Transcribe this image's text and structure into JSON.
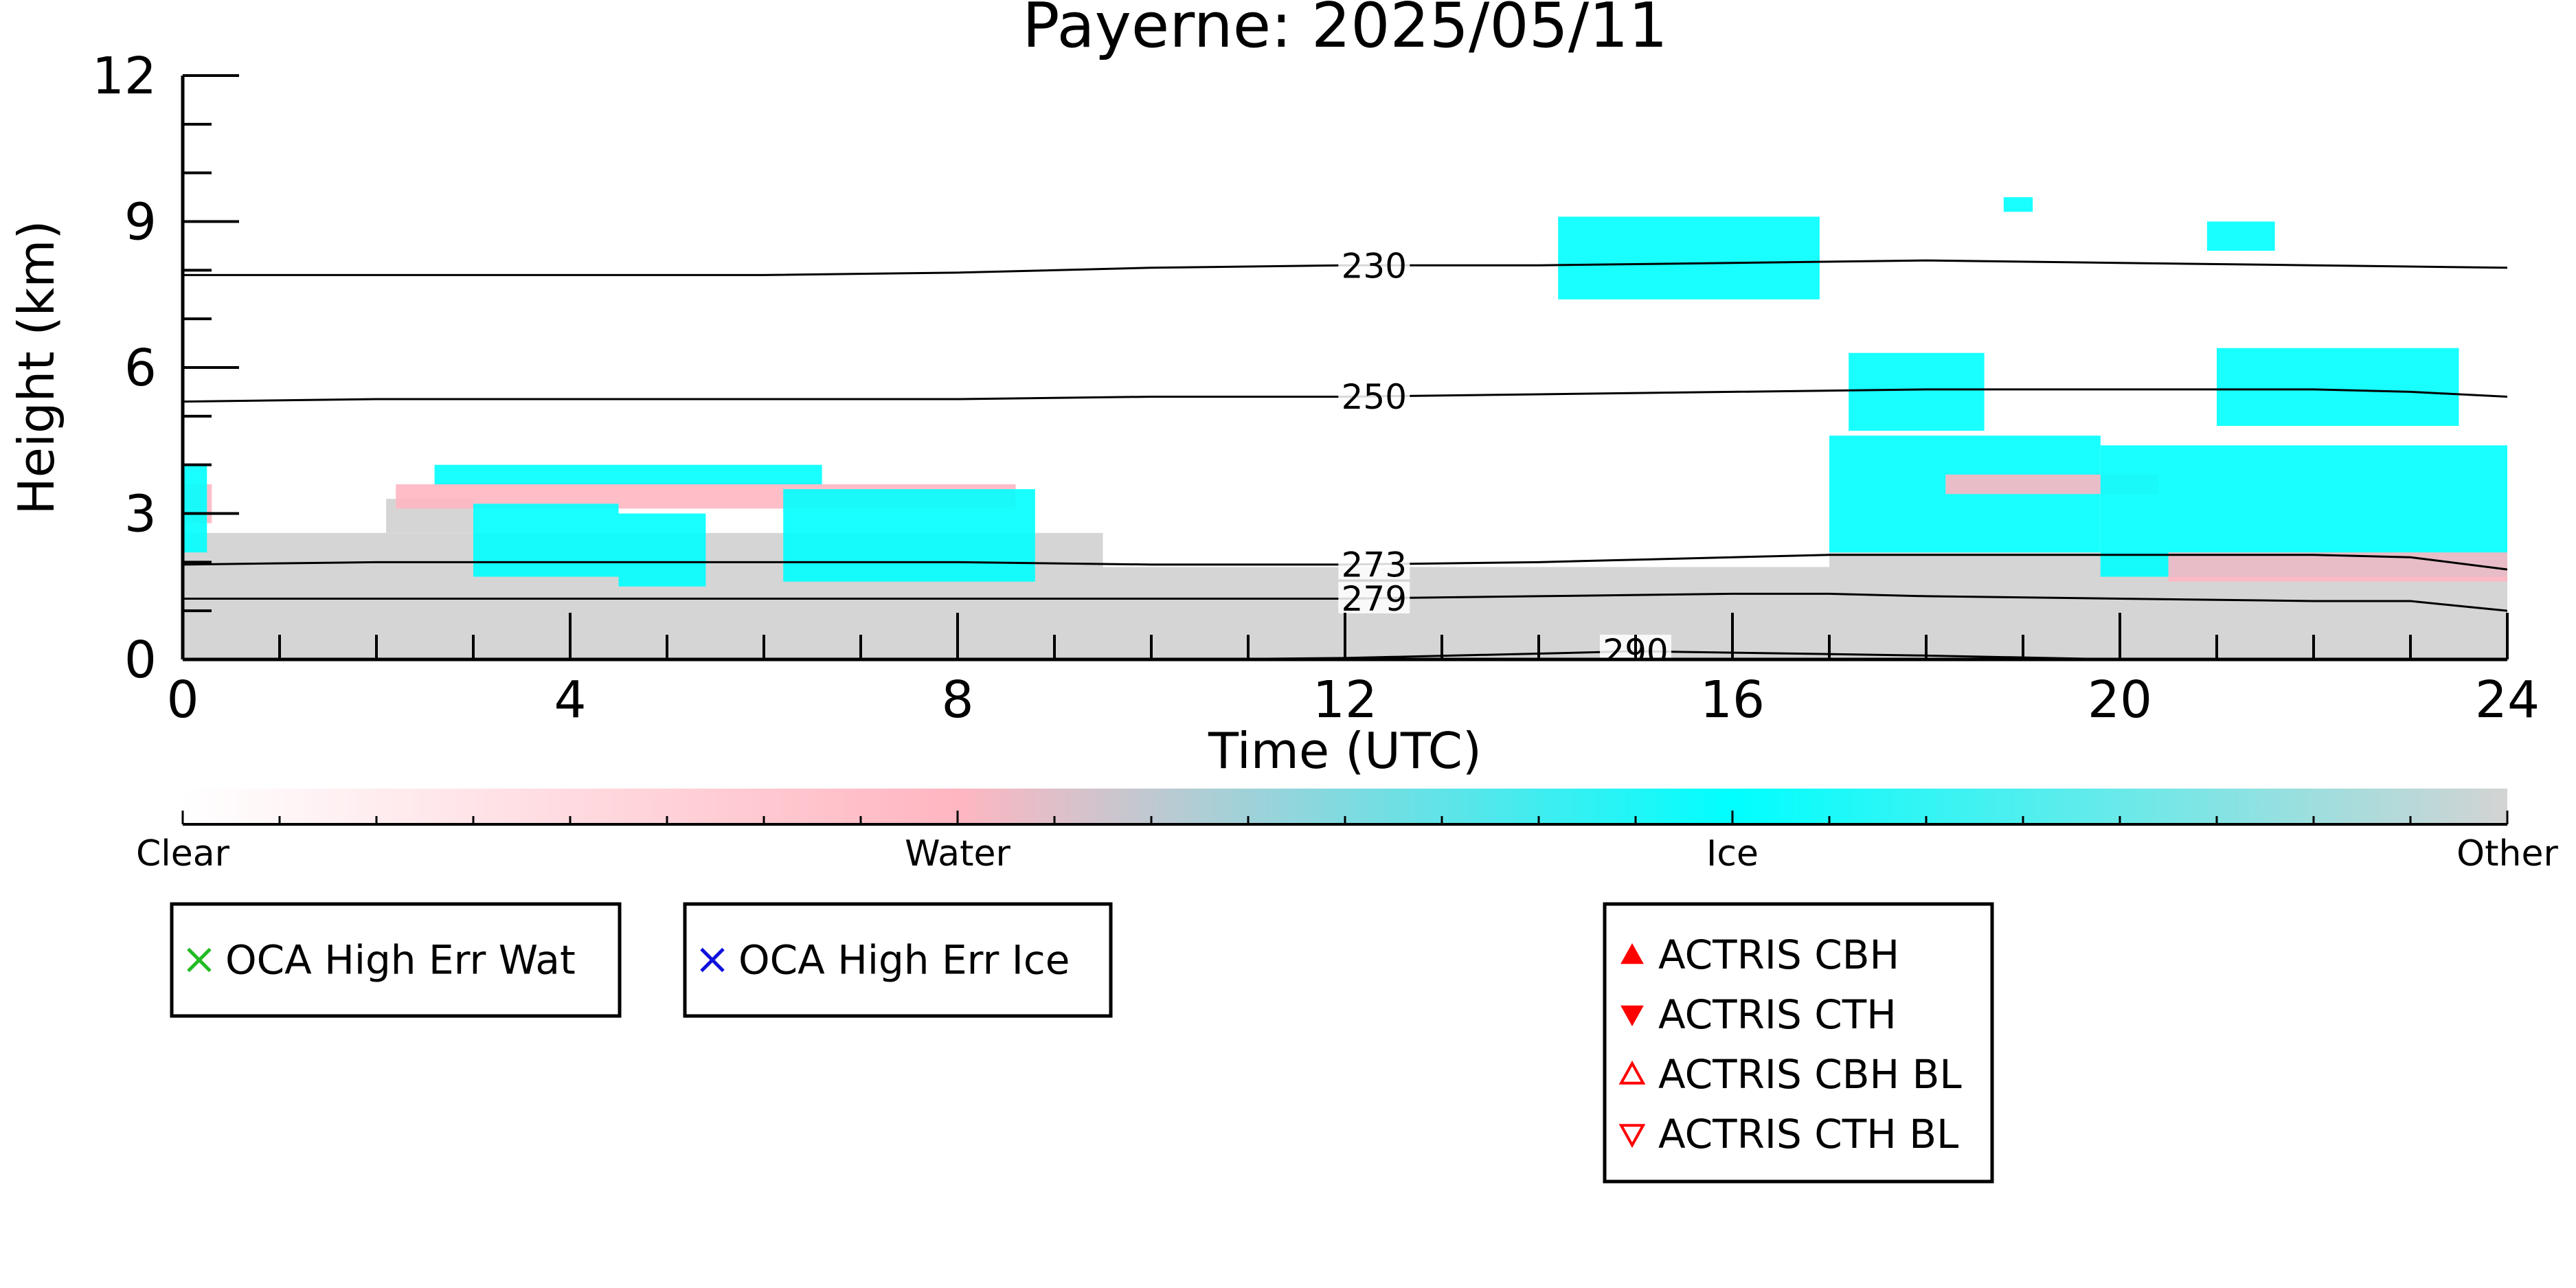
{
  "chart_data": {
    "type": "heatmap",
    "title": "Payerne: 2025/05/11",
    "xlabel": "Time (UTC)",
    "ylabel": "Height (km)",
    "xlim": [
      0,
      24
    ],
    "ylim": [
      0,
      12
    ],
    "x_ticks": [
      "0",
      "4",
      "8",
      "12",
      "16",
      "20",
      "24"
    ],
    "y_ticks": [
      "0",
      "3",
      "6",
      "9",
      "12"
    ],
    "colorbar": {
      "labels": [
        "Clear",
        "Water",
        "Ice",
        "Other"
      ],
      "stops": [
        {
          "value": 0.0,
          "color": "#ffffff"
        },
        {
          "value": 0.333,
          "color": "#ffb6c1"
        },
        {
          "value": 0.667,
          "color": "#00ffff"
        },
        {
          "value": 1.0,
          "color": "#d3d3d3"
        }
      ]
    },
    "classes": {
      "Water": "#ffb6c1",
      "Ice": "#00ffff",
      "Other": "#d3d3d3"
    },
    "regions": [
      {
        "class": "Other",
        "x": [
          0,
          24
        ],
        "y": [
          0,
          1.2
        ]
      },
      {
        "class": "Other",
        "x": [
          0,
          9.5
        ],
        "y": [
          1.2,
          2.6
        ]
      },
      {
        "class": "Other",
        "x": [
          9.5,
          17
        ],
        "y": [
          1.2,
          1.9
        ]
      },
      {
        "class": "Other",
        "x": [
          17,
          24
        ],
        "y": [
          1.2,
          2.2
        ]
      },
      {
        "class": "Water",
        "x": [
          0,
          0.3
        ],
        "y": [
          2.8,
          3.6
        ]
      },
      {
        "class": "Ice",
        "x": [
          0,
          0.25
        ],
        "y": [
          2.2,
          4.0
        ]
      },
      {
        "class": "Other",
        "x": [
          2.1,
          3.0
        ],
        "y": [
          2.6,
          3.3
        ]
      },
      {
        "class": "Water",
        "x": [
          2.2,
          8.6
        ],
        "y": [
          3.1,
          3.6
        ]
      },
      {
        "class": "Ice",
        "x": [
          2.6,
          6.6
        ],
        "y": [
          3.6,
          4.0
        ]
      },
      {
        "class": "Ice",
        "x": [
          3.0,
          4.5
        ],
        "y": [
          1.7,
          3.2
        ]
      },
      {
        "class": "Ice",
        "x": [
          4.5,
          5.4
        ],
        "y": [
          1.5,
          3.0
        ]
      },
      {
        "class": "Ice",
        "x": [
          6.2,
          8.8
        ],
        "y": [
          1.6,
          3.5
        ]
      },
      {
        "class": "Ice",
        "x": [
          14.2,
          16.9
        ],
        "y": [
          7.4,
          9.1
        ]
      },
      {
        "class": "Ice",
        "x": [
          17.0,
          19.8
        ],
        "y": [
          2.2,
          4.6
        ]
      },
      {
        "class": "Ice",
        "x": [
          17.2,
          18.6
        ],
        "y": [
          4.7,
          6.3
        ]
      },
      {
        "class": "Water",
        "x": [
          18.2,
          20.4
        ],
        "y": [
          3.4,
          3.8
        ]
      },
      {
        "class": "Ice",
        "x": [
          19.8,
          24.0
        ],
        "y": [
          1.7,
          4.4
        ]
      },
      {
        "class": "Ice",
        "x": [
          21.0,
          23.5
        ],
        "y": [
          4.8,
          6.4
        ]
      },
      {
        "class": "Water",
        "x": [
          20.5,
          24.0
        ],
        "y": [
          1.6,
          2.2
        ]
      },
      {
        "class": "Ice",
        "x": [
          18.8,
          19.1
        ],
        "y": [
          9.2,
          9.5
        ]
      },
      {
        "class": "Ice",
        "x": [
          20.9,
          21.6
        ],
        "y": [
          8.4,
          9.0
        ]
      }
    ],
    "isotherms": [
      {
        "label": "230",
        "x": [
          0,
          2,
          4,
          6,
          8,
          10,
          12,
          14,
          16,
          18,
          20,
          22,
          24
        ],
        "y": [
          7.9,
          7.9,
          7.9,
          7.9,
          7.95,
          8.05,
          8.1,
          8.1,
          8.15,
          8.2,
          8.15,
          8.1,
          8.05
        ]
      },
      {
        "label": "250",
        "x": [
          0,
          2,
          4,
          6,
          8,
          10,
          12,
          14,
          16,
          18,
          20,
          22,
          23,
          24
        ],
        "y": [
          5.3,
          5.35,
          5.35,
          5.35,
          5.35,
          5.4,
          5.4,
          5.45,
          5.5,
          5.55,
          5.55,
          5.55,
          5.5,
          5.4
        ]
      },
      {
        "label": "273",
        "x": [
          0,
          2,
          4,
          6,
          8,
          10,
          12,
          14,
          16,
          17,
          18,
          20,
          22,
          23,
          24
        ],
        "y": [
          1.95,
          2.0,
          2.0,
          2.0,
          2.0,
          1.95,
          1.95,
          2.0,
          2.1,
          2.15,
          2.15,
          2.15,
          2.15,
          2.1,
          1.85
        ]
      },
      {
        "label": "279",
        "x": [
          0,
          2,
          4,
          6,
          8,
          10,
          12,
          14,
          16,
          17,
          18,
          20,
          22,
          23,
          24
        ],
        "y": [
          1.25,
          1.25,
          1.25,
          1.25,
          1.25,
          1.25,
          1.25,
          1.3,
          1.35,
          1.35,
          1.3,
          1.25,
          1.2,
          1.2,
          1.0
        ]
      },
      {
        "label": "290",
        "x": [
          10.5,
          12,
          14,
          15,
          16,
          18,
          20
        ],
        "y": [
          0.0,
          0.03,
          0.12,
          0.17,
          0.14,
          0.08,
          0.0
        ]
      }
    ],
    "legends": [
      {
        "entries": [
          {
            "label": "OCA High Err Wat",
            "marker": "x-cross",
            "color": "#22bb22"
          }
        ]
      },
      {
        "entries": [
          {
            "label": "OCA High Err Ice",
            "marker": "x-cross",
            "color": "#1010dd"
          }
        ]
      },
      {
        "entries": [
          {
            "label": "ACTRIS CBH",
            "marker": "triangle-up-filled",
            "color": "#ff0000"
          },
          {
            "label": "ACTRIS CTH",
            "marker": "triangle-down-filled",
            "color": "#ff0000"
          },
          {
            "label": "ACTRIS CBH BL",
            "marker": "triangle-up-open",
            "color": "#ff0000"
          },
          {
            "label": "ACTRIS CTH BL",
            "marker": "triangle-down-open",
            "color": "#ff0000"
          }
        ]
      }
    ],
    "grid": false
  }
}
